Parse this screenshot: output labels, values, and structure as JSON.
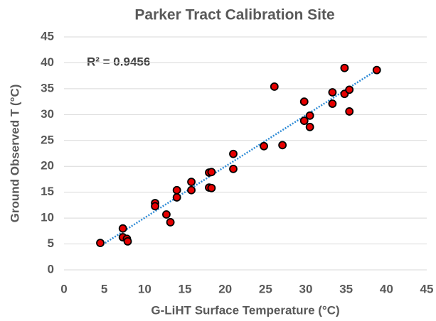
{
  "chart_data": {
    "type": "scatter",
    "title": "Parker Tract Calibration Site",
    "x_label": "G-LiHT Surface Temperature (°C)",
    "y_label": "Ground Observed T (°C)",
    "annotation": "R² = 0.9456",
    "xlim": [
      0,
      45
    ],
    "xticks": [
      0,
      5,
      10,
      15,
      20,
      25,
      30,
      35,
      40,
      45
    ],
    "ylim": [
      0,
      45
    ],
    "yticks": [
      0,
      5,
      10,
      15,
      20,
      25,
      30,
      35,
      40,
      45
    ],
    "grid": true,
    "series": [
      {
        "color": "#e60000",
        "x": [
          4.5,
          7.3,
          7.3,
          7.8,
          7.9,
          11.3,
          11.3,
          12.7,
          13.2,
          14.0,
          14.0,
          15.8,
          15.8,
          18.0,
          18.3,
          18.0,
          18.3,
          21.0,
          21.0,
          24.8,
          26.1,
          27.1,
          29.8,
          29.8,
          30.5,
          30.5,
          33.3,
          33.3,
          34.8,
          34.8,
          35.4,
          35.4,
          38.8
        ],
        "values": [
          5.2,
          8.0,
          6.3,
          6.0,
          5.5,
          12.9,
          12.3,
          10.7,
          9.2,
          15.4,
          14.0,
          17.0,
          15.4,
          18.8,
          18.9,
          15.9,
          15.8,
          22.4,
          19.5,
          23.9,
          35.4,
          24.1,
          32.5,
          28.8,
          29.8,
          27.6,
          34.3,
          32.1,
          39.0,
          34.0,
          34.8,
          30.6,
          38.6
        ]
      }
    ],
    "trendline": {
      "color": "#2e8bd6",
      "x": [
        4.5,
        38.8
      ],
      "values": [
        4.6,
        38.6
      ]
    }
  }
}
